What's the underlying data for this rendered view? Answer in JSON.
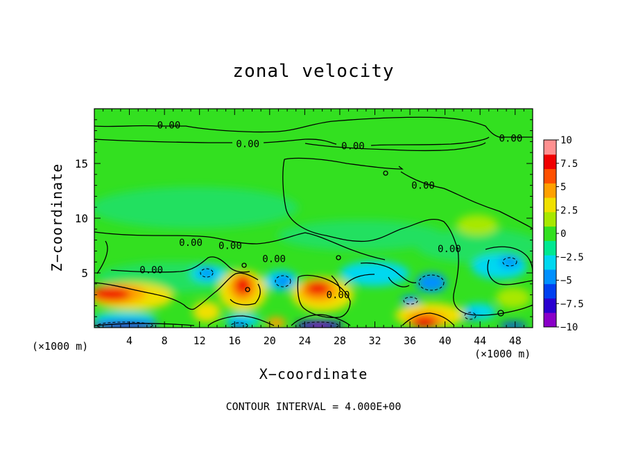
{
  "chart_data": {
    "type": "heatmap",
    "title": "zonal velocity",
    "xlabel": "X−coordinate",
    "ylabel": "Z−coordinate",
    "x_unit_left": "(×1000 m)",
    "x_unit_right": "(×1000 m)",
    "footer": "CONTOUR INTERVAL = 4.000E+00",
    "xlim": [
      0,
      50
    ],
    "ylim": [
      0,
      20
    ],
    "x_ticks": [
      "4",
      "8",
      "12",
      "16",
      "20",
      "24",
      "28",
      "32",
      "36",
      "40",
      "44",
      "48"
    ],
    "y_ticks": [
      "5",
      "10",
      "15"
    ],
    "colorbar": {
      "range": [
        -10,
        10
      ],
      "tick_labels": [
        "10",
        "7.5",
        "5",
        "2.5",
        "0",
        "−2.5",
        "−5",
        "−7.5",
        "−10"
      ],
      "colors": [
        "#8a00c8",
        "#2a00d0",
        "#0040f0",
        "#0090ff",
        "#00d8f0",
        "#00e890",
        "#33e020",
        "#a8e800",
        "#f0e000",
        "#ffa000",
        "#ff5000",
        "#f00000",
        "#ff9090"
      ]
    },
    "contour_labels": [
      {
        "text": "0.00",
        "x": 8.5,
        "y": 18.5
      },
      {
        "text": "0.00",
        "x": 17.5,
        "y": 16.8
      },
      {
        "text": "0.00",
        "x": 29.5,
        "y": 16.6
      },
      {
        "text": "0.00",
        "x": 47.5,
        "y": 17.3
      },
      {
        "text": "0.00",
        "x": 37.5,
        "y": 13.0
      },
      {
        "text": "0.00",
        "x": 11,
        "y": 7.8
      },
      {
        "text": "0.00",
        "x": 15.5,
        "y": 7.5
      },
      {
        "text": "0.00",
        "x": 20.5,
        "y": 6.3
      },
      {
        "text": "0.00",
        "x": 6.5,
        "y": 5.3
      },
      {
        "text": "0.00",
        "x": 40.5,
        "y": 7.2
      },
      {
        "text": "0.00",
        "x": 27.8,
        "y": 3.0
      }
    ],
    "features": [
      {
        "name": "strong-positive-near-x0",
        "x": 2,
        "y": 3,
        "value": 8.5
      },
      {
        "name": "positive-near-x17",
        "x": 17,
        "y": 3.5,
        "value": 9
      },
      {
        "name": "positive-near-x25",
        "x": 25,
        "y": 3.3,
        "value": 9
      },
      {
        "name": "positive-near-x38",
        "x": 38.5,
        "y": 0.8,
        "value": 9
      },
      {
        "name": "negative-near-x38",
        "x": 38.5,
        "y": 4,
        "value": -6
      },
      {
        "name": "negative-near-x25-bottom",
        "x": 25.5,
        "y": 0.3,
        "value": -9
      },
      {
        "name": "negative-near-x3-bottom",
        "x": 3,
        "y": 0.4,
        "value": -8
      }
    ]
  }
}
